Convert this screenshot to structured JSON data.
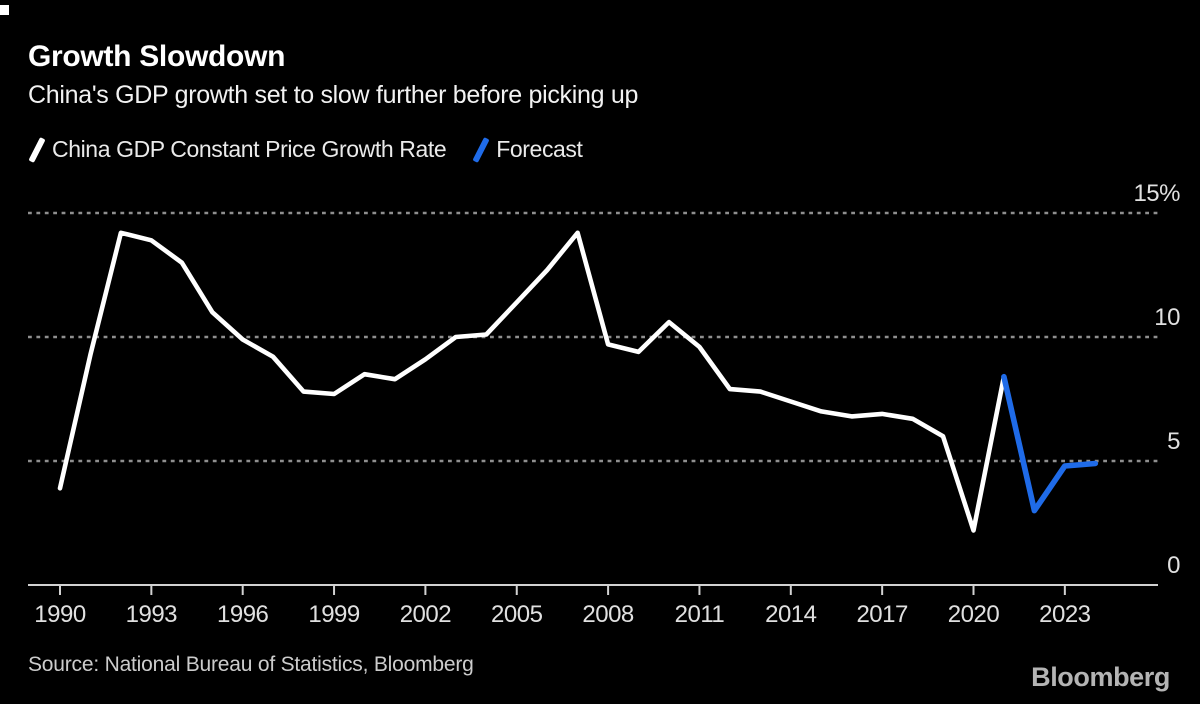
{
  "header": {
    "title": "Growth Slowdown",
    "subtitle": "China's GDP growth set to slow further before picking up"
  },
  "legend": {
    "items": [
      {
        "label": "China GDP Constant Price Growth Rate",
        "color": "#ffffff"
      },
      {
        "label": "Forecast",
        "color": "#1f6be8"
      }
    ]
  },
  "footer": {
    "source": "Source: National Bureau of Statistics, Bloomberg",
    "brand": "Bloomberg"
  },
  "colors": {
    "background": "#000000",
    "actual_line": "#ffffff",
    "forecast_line": "#1f6be8",
    "gridline": "#8f8f8f",
    "axis": "#d2d2d2",
    "tick_label": "#e0e0e0"
  },
  "chart_data": {
    "type": "line",
    "title": "Growth Slowdown",
    "subtitle": "China's GDP growth set to slow further before picking up",
    "xlabel": "",
    "ylabel": "%",
    "ylim": [
      0,
      15.7
    ],
    "xlim": [
      1989,
      2025.6
    ],
    "grid": "horizontal-dotted",
    "legend_position": "top-left",
    "x_ticks": [
      1990,
      1993,
      1996,
      1999,
      2002,
      2005,
      2008,
      2011,
      2014,
      2017,
      2020,
      2023
    ],
    "y_ticks": [
      {
        "value": 15,
        "label": "15%"
      },
      {
        "value": 10,
        "label": "10"
      },
      {
        "value": 5,
        "label": "5"
      },
      {
        "value": 0,
        "label": "0"
      }
    ],
    "series": [
      {
        "name": "China GDP Constant Price Growth Rate",
        "color": "#ffffff",
        "x": [
          1990,
          1991,
          1992,
          1993,
          1994,
          1995,
          1996,
          1997,
          1998,
          1999,
          2000,
          2001,
          2002,
          2003,
          2004,
          2005,
          2006,
          2007,
          2008,
          2009,
          2010,
          2011,
          2012,
          2013,
          2014,
          2015,
          2016,
          2017,
          2018,
          2019,
          2020,
          2021
        ],
        "values": [
          3.9,
          9.3,
          14.2,
          13.9,
          13.0,
          11.0,
          9.9,
          9.2,
          7.8,
          7.7,
          8.5,
          8.3,
          9.1,
          10.0,
          10.1,
          11.4,
          12.7,
          14.2,
          9.7,
          9.4,
          10.6,
          9.6,
          7.9,
          7.8,
          7.4,
          7.0,
          6.8,
          6.9,
          6.7,
          6.0,
          2.2,
          8.4
        ]
      },
      {
        "name": "Forecast",
        "color": "#1f6be8",
        "x": [
          2021,
          2022,
          2023,
          2024
        ],
        "values": [
          8.4,
          3.0,
          4.8,
          4.9
        ]
      }
    ]
  }
}
